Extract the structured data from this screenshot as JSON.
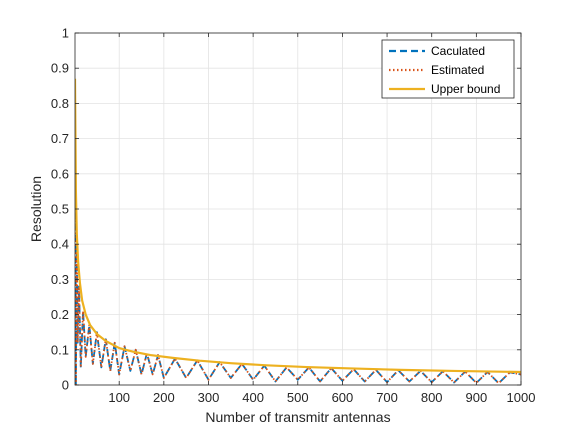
{
  "chart_data": {
    "type": "line",
    "xlabel": "Number of transmitr antennas",
    "ylabel": "Resolution",
    "xlim": [
      1,
      1000
    ],
    "ylim": [
      0,
      1
    ],
    "xticks": [
      100,
      200,
      300,
      400,
      500,
      600,
      700,
      800,
      900,
      1000
    ],
    "yticks": [
      0,
      0.1,
      0.2,
      0.3,
      0.4,
      0.5,
      0.6,
      0.7,
      0.8,
      0.9,
      1
    ],
    "xtick_labels": [
      "100",
      "200",
      "300",
      "400",
      "500",
      "600",
      "700",
      "800",
      "900",
      "1000"
    ],
    "ytick_labels": [
      "0",
      "0.1",
      "0.2",
      "0.3",
      "0.4",
      "0.5",
      "0.6",
      "0.7",
      "0.8",
      "0.9",
      "1"
    ],
    "grid": true,
    "legend_position": "top-right",
    "series": [
      {
        "name": "Caculated",
        "color": "#0072BD",
        "style": "dashed",
        "x": [
          1,
          2,
          3,
          5,
          7,
          10,
          14,
          19,
          25,
          33,
          41,
          50,
          60,
          70,
          80,
          90,
          100,
          112,
          125,
          137,
          150,
          162,
          175,
          187,
          200,
          225,
          250,
          275,
          300,
          325,
          350,
          375,
          400,
          425,
          450,
          475,
          500,
          525,
          550,
          575,
          600,
          625,
          650,
          675,
          700,
          725,
          750,
          775,
          800,
          825,
          850,
          875,
          900,
          925,
          950,
          975,
          1000
        ],
        "y": [
          0.74,
          0.55,
          0.0,
          0.38,
          0.12,
          0.28,
          0.05,
          0.21,
          0.08,
          0.17,
          0.06,
          0.15,
          0.05,
          0.13,
          0.04,
          0.12,
          0.03,
          0.11,
          0.04,
          0.1,
          0.03,
          0.09,
          0.03,
          0.085,
          0.02,
          0.075,
          0.02,
          0.07,
          0.015,
          0.065,
          0.02,
          0.06,
          0.015,
          0.055,
          0.01,
          0.05,
          0.015,
          0.05,
          0.01,
          0.048,
          0.012,
          0.045,
          0.01,
          0.043,
          0.008,
          0.042,
          0.01,
          0.04,
          0.008,
          0.039,
          0.007,
          0.038,
          0.006,
          0.037,
          0.005,
          0.036,
          0.03
        ]
      },
      {
        "name": "Estimated",
        "color": "#D95319",
        "style": "dotted",
        "x": [
          1,
          2,
          3,
          5,
          7,
          10,
          14,
          19,
          25,
          33,
          41,
          50,
          60,
          70,
          80,
          90,
          100,
          112,
          125,
          137,
          150,
          162,
          175,
          187,
          200,
          225,
          250,
          275,
          300,
          325,
          350,
          375,
          400,
          425,
          450,
          475,
          500,
          525,
          550,
          575,
          600,
          625,
          650,
          675,
          700,
          725,
          750,
          775,
          800,
          825,
          850,
          875,
          900,
          925,
          950,
          975,
          1000
        ],
        "y": [
          0.74,
          0.55,
          0.0,
          0.38,
          0.12,
          0.28,
          0.05,
          0.21,
          0.08,
          0.17,
          0.06,
          0.15,
          0.05,
          0.13,
          0.04,
          0.12,
          0.03,
          0.11,
          0.04,
          0.1,
          0.03,
          0.09,
          0.03,
          0.085,
          0.02,
          0.075,
          0.02,
          0.07,
          0.015,
          0.065,
          0.02,
          0.06,
          0.015,
          0.055,
          0.01,
          0.05,
          0.015,
          0.05,
          0.01,
          0.048,
          0.012,
          0.045,
          0.01,
          0.043,
          0.008,
          0.042,
          0.01,
          0.04,
          0.008,
          0.039,
          0.007,
          0.038,
          0.006,
          0.037,
          0.005,
          0.036,
          0.03
        ]
      },
      {
        "name": "Upper bound",
        "color": "#EDB120",
        "style": "solid",
        "x": [
          1,
          3,
          5,
          8,
          12,
          17,
          25,
          35,
          50,
          70,
          100,
          130,
          170,
          220,
          280,
          350,
          430,
          520,
          620,
          730,
          850,
          1000
        ],
        "y": [
          0.87,
          0.55,
          0.43,
          0.35,
          0.29,
          0.24,
          0.2,
          0.17,
          0.145,
          0.125,
          0.105,
          0.095,
          0.085,
          0.077,
          0.069,
          0.062,
          0.056,
          0.051,
          0.047,
          0.043,
          0.04,
          0.037
        ]
      }
    ]
  }
}
